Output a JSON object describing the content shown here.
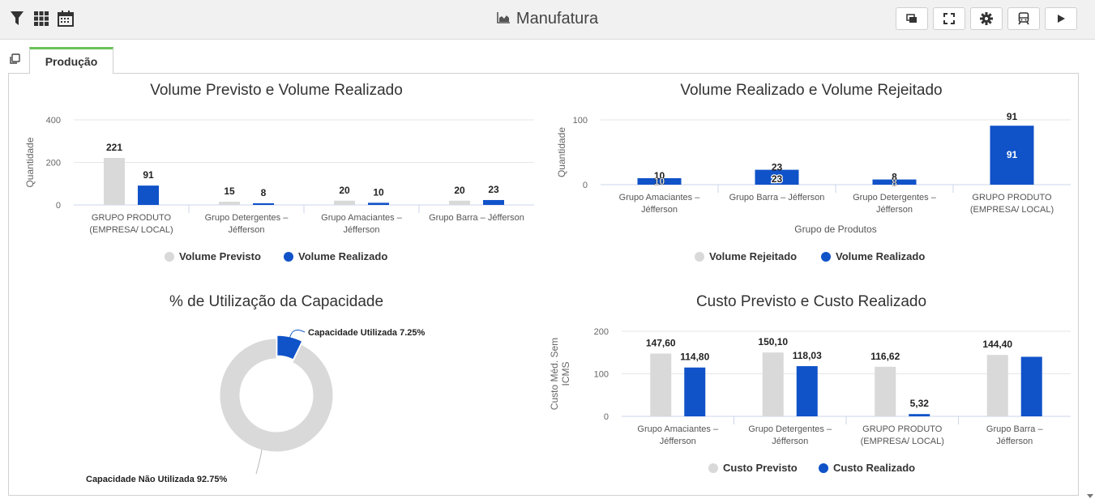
{
  "header": {
    "title": "Manufatura"
  },
  "tabs": [
    {
      "label": "Produção",
      "active": true
    }
  ],
  "colors": {
    "gray": "#d9d9d9",
    "blue": "#1052c8",
    "tab_accent": "#6ac259"
  },
  "charts": [
    {
      "type": "bar",
      "title": "Volume Previsto e Volume Realizado",
      "ylabel": "Quantidade",
      "xlabel": "",
      "yticks": [
        0,
        200,
        400
      ],
      "ylim": [
        0,
        400
      ],
      "categories": [
        [
          "GRUPO PRODUTO",
          "(EMPRESA/ LOCAL)"
        ],
        [
          "Grupo Detergentes –",
          "Jéfferson"
        ],
        [
          "Grupo Amaciantes –",
          "Jéfferson"
        ],
        [
          "Grupo Barra – Jéfferson"
        ]
      ],
      "series": [
        {
          "name": "Volume Previsto",
          "color": "gray",
          "values": [
            221,
            15,
            20,
            20
          ],
          "labels": [
            "221",
            "15",
            "20",
            "20"
          ]
        },
        {
          "name": "Volume Realizado",
          "color": "blue",
          "values": [
            91,
            8,
            10,
            23
          ],
          "labels": [
            "91",
            "8",
            "10",
            "23"
          ]
        }
      ],
      "legend": "bottom"
    },
    {
      "type": "bar",
      "title": "Volume Realizado e Volume Rejeitado",
      "ylabel": "Quantidade",
      "xlabel": "Grupo de Produtos",
      "yticks": [
        0,
        100
      ],
      "ylim": [
        0,
        100
      ],
      "categories": [
        [
          "Grupo Amaciantes –",
          "Jéfferson"
        ],
        [
          "Grupo Barra – Jéfferson"
        ],
        [
          "Grupo Detergentes –",
          "Jéfferson"
        ],
        [
          "GRUPO PRODUTO",
          "(EMPRESA/ LOCAL)"
        ]
      ],
      "series": [
        {
          "name": "Volume Rejeitado",
          "color": "gray",
          "values": [
            0,
            0,
            0,
            0
          ]
        },
        {
          "name": "Volume Realizado",
          "color": "blue",
          "values": [
            10,
            23,
            8,
            91
          ]
        }
      ],
      "bar_labels": [
        "10",
        "23",
        "8",
        "91"
      ],
      "legend": "bottom"
    },
    {
      "type": "pie",
      "title": "% de Utilização da Capacidade",
      "slices": [
        {
          "label": "Capacidade Utilizada 7.25%",
          "value": 7.25,
          "color": "blue"
        },
        {
          "label": "Capacidade Não Utilizada 92.75%",
          "value": 92.75,
          "color": "gray"
        }
      ]
    },
    {
      "type": "bar",
      "title": "Custo Previsto e Custo Realizado",
      "ylabel": [
        "Custo Méd. Sem",
        "ICMS"
      ],
      "xlabel": "",
      "yticks": [
        0,
        100,
        200
      ],
      "ylim": [
        0,
        200
      ],
      "categories": [
        [
          "Grupo Amaciantes –",
          "Jéfferson"
        ],
        [
          "Grupo Detergentes –",
          "Jéfferson"
        ],
        [
          "GRUPO PRODUTO",
          "(EMPRESA/ LOCAL)"
        ],
        [
          "Grupo Barra –",
          "Jéfferson"
        ]
      ],
      "series": [
        {
          "name": "Custo Previsto",
          "color": "gray",
          "values": [
            147.6,
            150.1,
            116.62,
            144.4
          ],
          "labels": [
            "147,60",
            "150,10",
            "116,62",
            "144,40"
          ]
        },
        {
          "name": "Custo Realizado",
          "color": "blue",
          "values": [
            114.8,
            118.03,
            5.32,
            140
          ],
          "labels": [
            "114,80",
            "118,03",
            "5,32",
            ""
          ]
        }
      ],
      "legend": "bottom"
    }
  ]
}
